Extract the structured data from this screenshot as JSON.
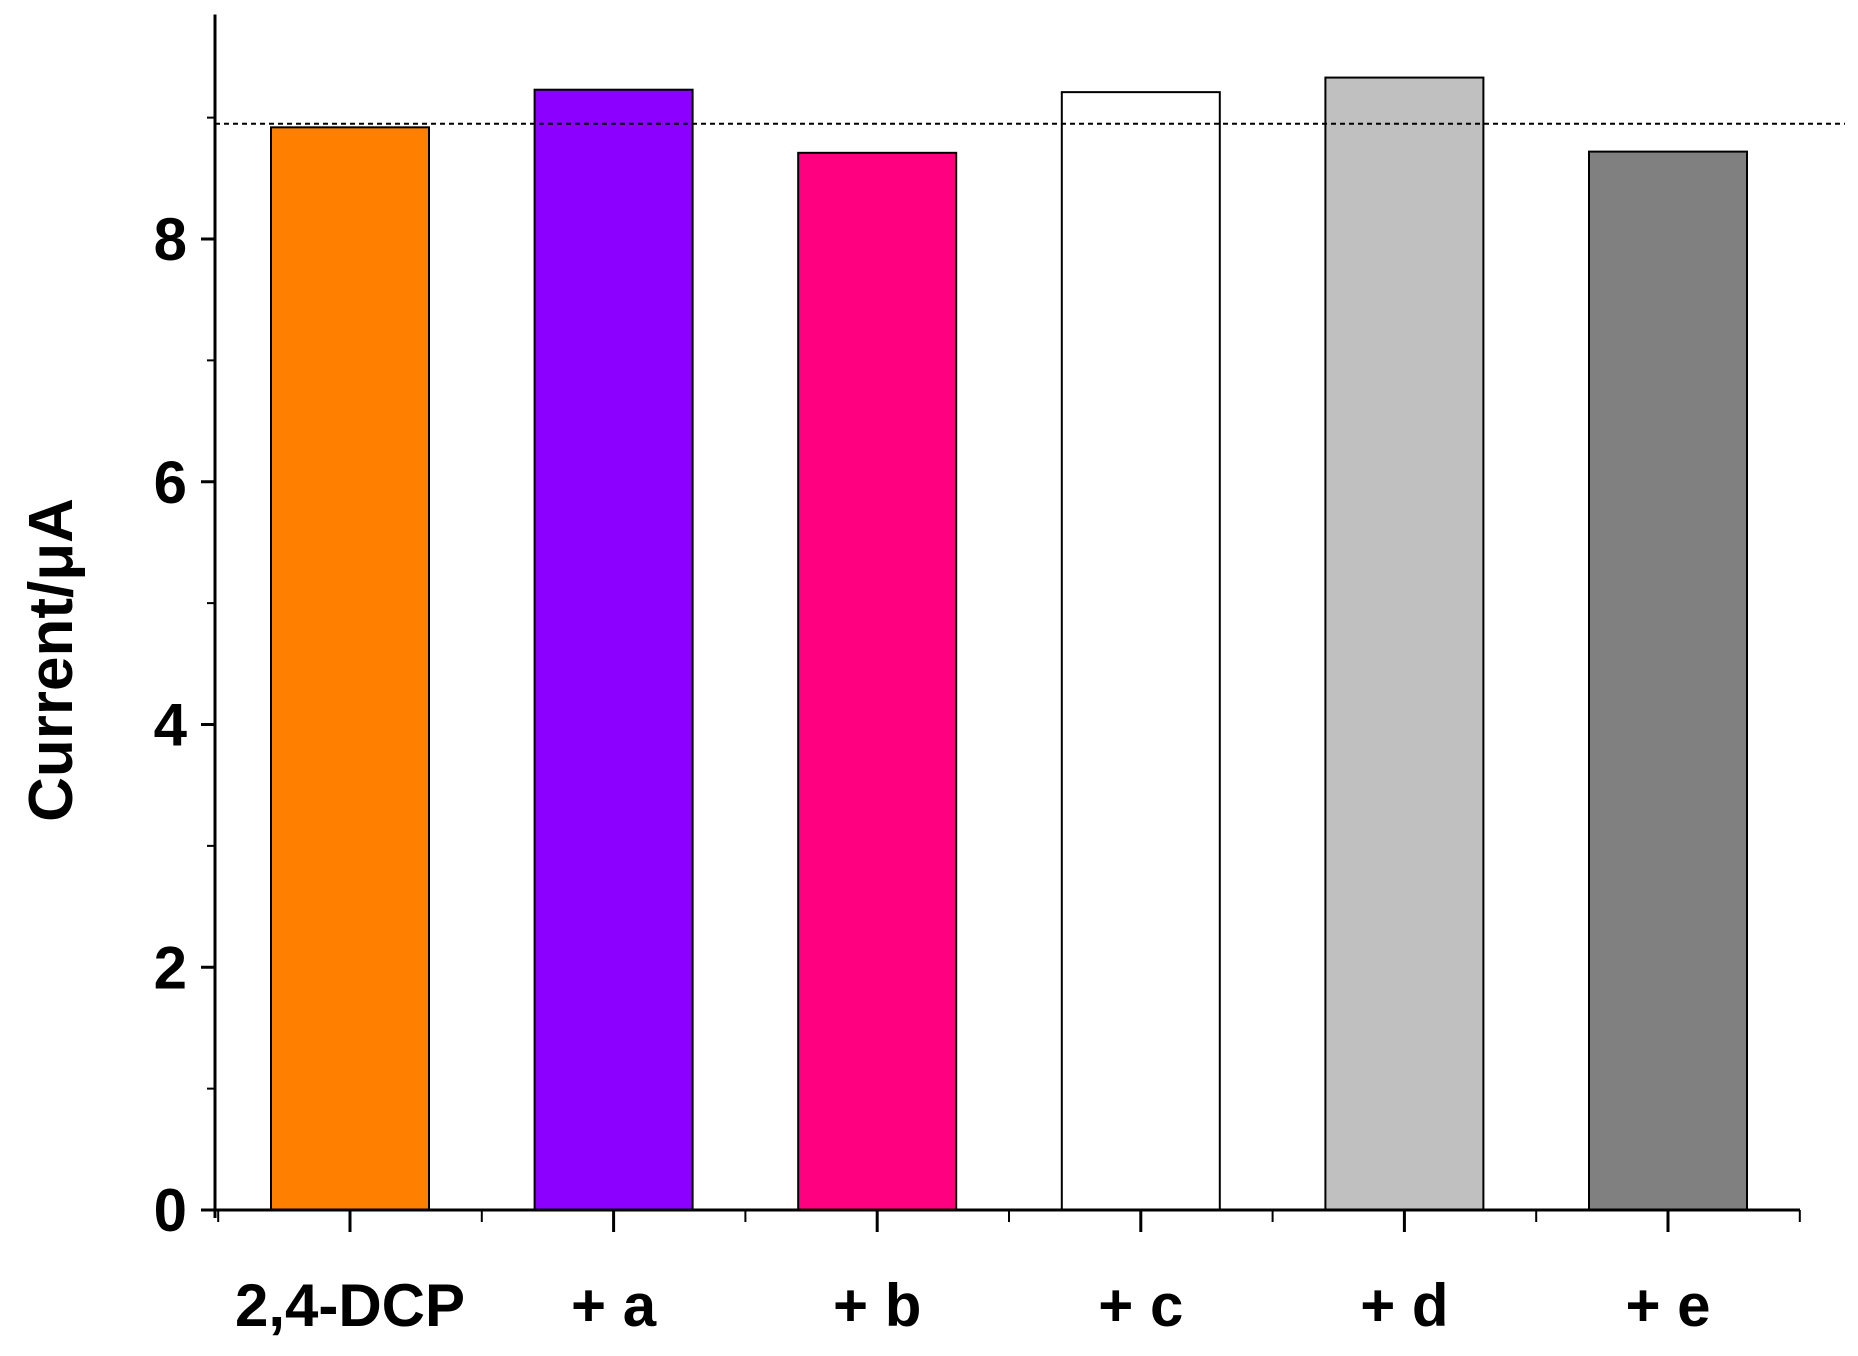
{
  "chart_data": {
    "type": "bar",
    "categories": [
      "2,4-DCP",
      "+ a",
      "+ b",
      "+ c",
      "+ d",
      "+ e"
    ],
    "values": [
      8.92,
      9.23,
      8.71,
      9.21,
      9.33,
      8.72
    ],
    "colors": [
      "#ff8000",
      "#8b00ff",
      "#ff0080",
      "#ffffff",
      "#c0c0c0",
      "#808080"
    ],
    "reference_line": 8.95,
    "xlabel": "",
    "ylabel": "Current/μA",
    "ylim": [
      0,
      9.85
    ],
    "yticks": [
      0,
      2,
      4,
      6,
      8
    ],
    "grid": false,
    "legend": "none"
  }
}
